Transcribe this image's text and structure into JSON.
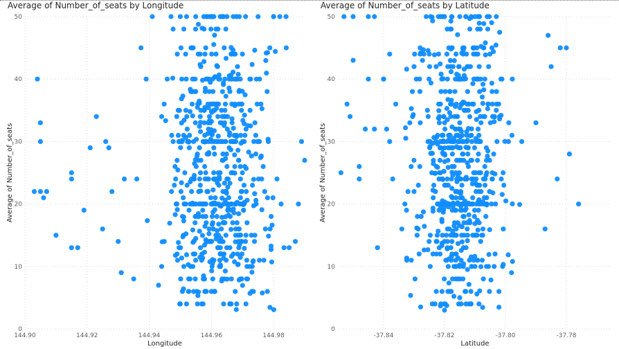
{
  "chart_data": [
    {
      "type": "scatter",
      "title": "Average of Number_of_seats by Longitude",
      "xlabel": "Longitude",
      "ylabel": "Average of Number_of_seats",
      "xlim": [
        144.9,
        144.99
      ],
      "ylim": [
        0,
        50
      ],
      "xticks": [
        "144.90",
        "144.92",
        "144.94",
        "144.96",
        "144.98"
      ],
      "yticks": [
        "0",
        "10",
        "20",
        "30",
        "40",
        "50"
      ],
      "grid": true,
      "color": "#118dff",
      "n_points": 640,
      "x_center": 144.962,
      "x_spread": 0.0115,
      "seed": 17,
      "points": [
        [
          144.904,
          40
        ],
        [
          144.905,
          33
        ],
        [
          144.905,
          30
        ],
        [
          144.903,
          22
        ],
        [
          144.905,
          22
        ],
        [
          144.907,
          22
        ],
        [
          144.906,
          21
        ],
        [
          144.91,
          15
        ],
        [
          144.915,
          25
        ],
        [
          144.915,
          24
        ],
        [
          144.915,
          13
        ],
        [
          144.917,
          13
        ],
        [
          144.919,
          19
        ],
        [
          144.921,
          29
        ],
        [
          144.923,
          34
        ],
        [
          144.925,
          16
        ],
        [
          144.926,
          30
        ],
        [
          144.927,
          29
        ],
        [
          144.928,
          22
        ],
        [
          144.93,
          14
        ],
        [
          144.931,
          9
        ],
        [
          144.932,
          24
        ],
        [
          144.935,
          8
        ],
        [
          144.936,
          24
        ],
        [
          144.939,
          40
        ],
        [
          144.943,
          7
        ],
        [
          144.944,
          10
        ],
        [
          144.95,
          4
        ],
        [
          144.952,
          4
        ],
        [
          144.958,
          6
        ],
        [
          144.96,
          6
        ],
        [
          144.966,
          4
        ],
        [
          144.973,
          6
        ],
        [
          144.978,
          6
        ],
        [
          144.985,
          13
        ],
        [
          144.987,
          14
        ],
        [
          144.988,
          20
        ],
        [
          144.989,
          30
        ],
        [
          144.99,
          27
        ],
        [
          144.95,
          50
        ],
        [
          144.952,
          50
        ],
        [
          144.96,
          50
        ],
        [
          144.965,
          50
        ],
        [
          144.969,
          50
        ],
        [
          144.971,
          50
        ],
        [
          144.975,
          50
        ],
        [
          144.98,
          50
        ],
        [
          144.982,
          50
        ],
        [
          144.984,
          50
        ],
        [
          144.941,
          50
        ],
        [
          144.947,
          50
        ],
        [
          144.949,
          44
        ]
      ]
    },
    {
      "type": "scatter",
      "title": "Average of Number_of_seats by Latitude",
      "xlabel": "Latitude",
      "ylabel": "Average of Number_of_seats",
      "xlim": [
        -37.855,
        -37.765
      ],
      "ylim": [
        0,
        50
      ],
      "xticks": [
        "-37.84",
        "-37.82",
        "-37.80",
        "-37.78"
      ],
      "yticks": [
        "0",
        "10",
        "20",
        "30",
        "40",
        "50"
      ],
      "grid": true,
      "color": "#118dff",
      "n_points": 640,
      "x_center": -37.815,
      "x_spread": 0.0095,
      "seed": 41,
      "points": [
        [
          -37.854,
          25
        ],
        [
          -37.852,
          36
        ],
        [
          -37.851,
          34
        ],
        [
          -37.85,
          43
        ],
        [
          -37.848,
          26
        ],
        [
          -37.848,
          24
        ],
        [
          -37.846,
          32
        ],
        [
          -37.845,
          40
        ],
        [
          -37.843,
          32
        ],
        [
          -37.842,
          13
        ],
        [
          -37.84,
          40
        ],
        [
          -37.839,
          32
        ],
        [
          -37.838,
          30
        ],
        [
          -37.837,
          24
        ],
        [
          -37.836,
          36
        ],
        [
          -37.834,
          16
        ],
        [
          -37.832,
          22
        ],
        [
          -37.83,
          22
        ],
        [
          -37.829,
          15
        ],
        [
          -37.828,
          44
        ],
        [
          -37.824,
          4
        ],
        [
          -37.82,
          3
        ],
        [
          -37.815,
          5
        ],
        [
          -37.812,
          4
        ],
        [
          -37.798,
          9
        ],
        [
          -37.79,
          33
        ],
        [
          -37.787,
          16
        ],
        [
          -37.786,
          47
        ],
        [
          -37.785,
          42
        ],
        [
          -37.783,
          24
        ],
        [
          -37.782,
          45
        ],
        [
          -37.78,
          45
        ],
        [
          -37.779,
          28
        ],
        [
          -37.776,
          20
        ],
        [
          -37.853,
          50
        ],
        [
          -37.85,
          50
        ],
        [
          -37.845,
          50
        ],
        [
          -37.843,
          50
        ],
        [
          -37.826,
          50
        ],
        [
          -37.822,
          50
        ],
        [
          -37.82,
          50
        ],
        [
          -37.815,
          50
        ],
        [
          -37.813,
          50
        ],
        [
          -37.806,
          50
        ],
        [
          -37.803,
          50
        ],
        [
          -37.84,
          40
        ],
        [
          -37.838,
          44
        ]
      ]
    }
  ]
}
